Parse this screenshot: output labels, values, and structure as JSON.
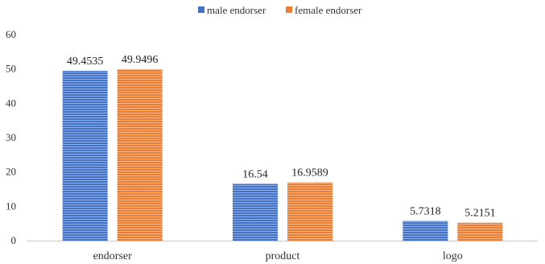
{
  "chart_data": {
    "type": "bar",
    "categories": [
      "endorser",
      "product",
      "logo"
    ],
    "series": [
      {
        "name": "male endorser",
        "values": [
          49.4535,
          16.54,
          5.7318
        ],
        "labels": [
          "49.4535",
          "16.54",
          "5.7318"
        ],
        "color": "#4472C4"
      },
      {
        "name": "female endorser",
        "values": [
          49.9496,
          16.9589,
          5.2151
        ],
        "labels": [
          "49.9496",
          "16.9589",
          "5.2151"
        ],
        "color": "#ED7D31"
      }
    ],
    "ylim": [
      0,
      60
    ],
    "yticks": [
      "0",
      "10",
      "20",
      "30",
      "40",
      "50",
      "60"
    ],
    "legend_position": "top",
    "grid": false
  }
}
